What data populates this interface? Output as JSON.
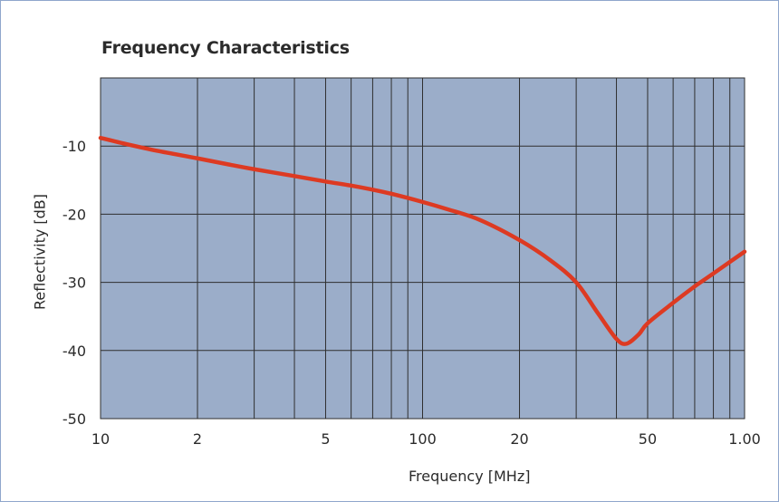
{
  "chart_data": {
    "type": "line",
    "title": "Frequency Characteristics",
    "xlabel": "Frequency [MHz]",
    "ylabel": "Reflectivity [dB]",
    "x_scale": "log",
    "xlim": [
      10,
      1000
    ],
    "ylim": [
      -50,
      0
    ],
    "x_ticks": [
      {
        "value": 10,
        "label": "10"
      },
      {
        "value": 20,
        "label": "2"
      },
      {
        "value": 50,
        "label": "5"
      },
      {
        "value": 100,
        "label": "100"
      },
      {
        "value": 200,
        "label": "20"
      },
      {
        "value": 500,
        "label": "50"
      },
      {
        "value": 1000,
        "label": "1.00"
      }
    ],
    "y_ticks": [
      {
        "value": -10,
        "label": "-10"
      },
      {
        "value": -20,
        "label": "-20"
      },
      {
        "value": -30,
        "label": "-30"
      },
      {
        "value": -40,
        "label": "-40"
      },
      {
        "value": -50,
        "label": "-50"
      }
    ],
    "grid": true,
    "colors": {
      "plot_background": "#9badc9",
      "grid": "#2f2f2f",
      "line": "#dd3a22"
    },
    "series": [
      {
        "x": [
          10,
          12,
          15,
          20,
          25,
          30,
          40,
          50,
          60,
          70,
          80,
          100,
          120,
          150,
          200,
          250,
          300,
          350,
          400,
          430,
          470,
          500,
          600,
          700,
          800,
          900,
          1000
        ],
        "y": [
          -8.8,
          -9.7,
          -10.7,
          -11.8,
          -12.7,
          -13.4,
          -14.4,
          -15.2,
          -15.8,
          -16.4,
          -17.0,
          -18.2,
          -19.3,
          -20.8,
          -23.8,
          -26.8,
          -30.0,
          -34.5,
          -38.3,
          -39.0,
          -37.6,
          -36.0,
          -33.0,
          -30.6,
          -28.7,
          -27.0,
          -25.5
        ]
      }
    ]
  }
}
